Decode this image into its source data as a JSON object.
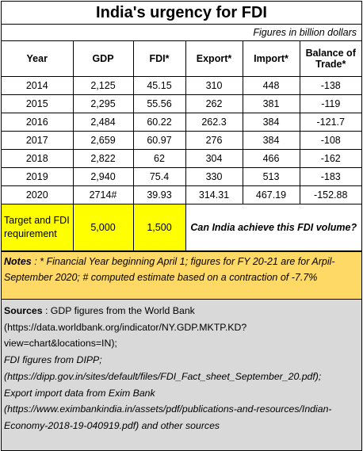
{
  "title": "India's urgency for FDI",
  "units_note": "Figures in billion dollars",
  "columns": [
    "Year",
    "GDP",
    "FDI*",
    "Export*",
    "Import*",
    "Balance of Trade*"
  ],
  "rows": [
    [
      "2014",
      "2,125",
      "45.15",
      "310",
      "448",
      "-138"
    ],
    [
      "2015",
      "2,295",
      "55.56",
      "262",
      "381",
      "-119"
    ],
    [
      "2016",
      "2,484",
      "60.22",
      "262.3",
      "384",
      "-121.7"
    ],
    [
      "2017",
      "2,659",
      "60.97",
      "276",
      "384",
      "-108"
    ],
    [
      "2018",
      "2,822",
      "62",
      "304",
      "466",
      "-162"
    ],
    [
      "2019",
      "2,940",
      "75.4",
      "330",
      "513",
      "-183"
    ],
    [
      "2020",
      "2714#",
      "39.93",
      "314.31",
      "467.19",
      "-152.88"
    ]
  ],
  "target": {
    "label": "Target and FDI requirement",
    "gdp": "5,000",
    "fdi": "1,500",
    "question": "Can India achieve this FDI volume?"
  },
  "notes": {
    "label": "Notes",
    "text": " : * Financial Year beginning April 1; figures for FY 20-21 are for Arpil-September 2020; # computed estimate based on a contraction of -7.7%"
  },
  "sources": {
    "label": "Sources",
    "gdp_text": " : GDP figures from the World Bank (https://data.worldbank.org/indicator/NY.GDP.MKTP.KD?view=chart&locations=IN);",
    "fdi_text": "FDI figures from DIPP; (https://dipp.gov.in/sites/default/files/FDI_Fact_sheet_September_20.pdf);",
    "exim_text": "Export import data from Exim Bank (https://www.eximbankindia.in/assets/pdf/publications-and-resources/Indian-Economy-2018-19-040919.pdf) and other sources"
  },
  "colors": {
    "yellow": "#ffff00",
    "notes_bg": "#ffd966",
    "sources_bg": "#d9d9d9"
  }
}
